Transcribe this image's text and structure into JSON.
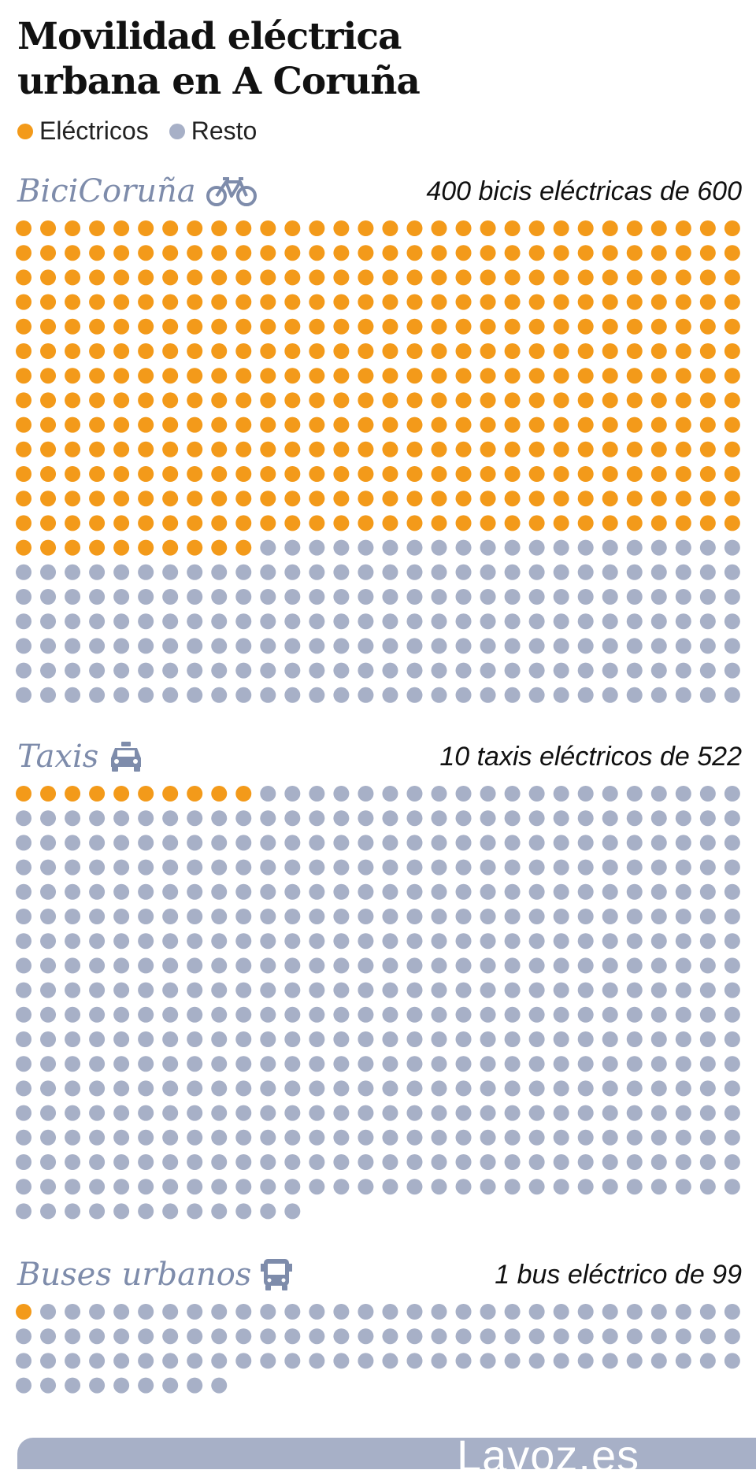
{
  "header": {
    "title_line1": "Movilidad eléctrica",
    "title_line2": "urbana en A Coruña"
  },
  "legend": {
    "electric_label": "Eléctricos",
    "rest_label": "Resto"
  },
  "colors": {
    "electric": "#f39a1a",
    "rest": "#a7b0c7",
    "section_title": "#7e8cab"
  },
  "footer": {
    "logo": "Lavoz.es"
  },
  "chart_data": {
    "type": "waffle",
    "columns": 30,
    "series": [
      {
        "name": "BiciCoruña",
        "icon": "bicycle-icon",
        "label": "400 bicis eléctricas de 600",
        "electric": 400,
        "total": 600
      },
      {
        "name": "Taxis",
        "icon": "taxi-icon",
        "label": "10 taxis eléctricos de 522",
        "electric": 10,
        "total": 522
      },
      {
        "name": "Buses urbanos",
        "icon": "bus-icon",
        "label": "1 bus eléctrico de 99",
        "electric": 1,
        "total": 99
      }
    ]
  }
}
